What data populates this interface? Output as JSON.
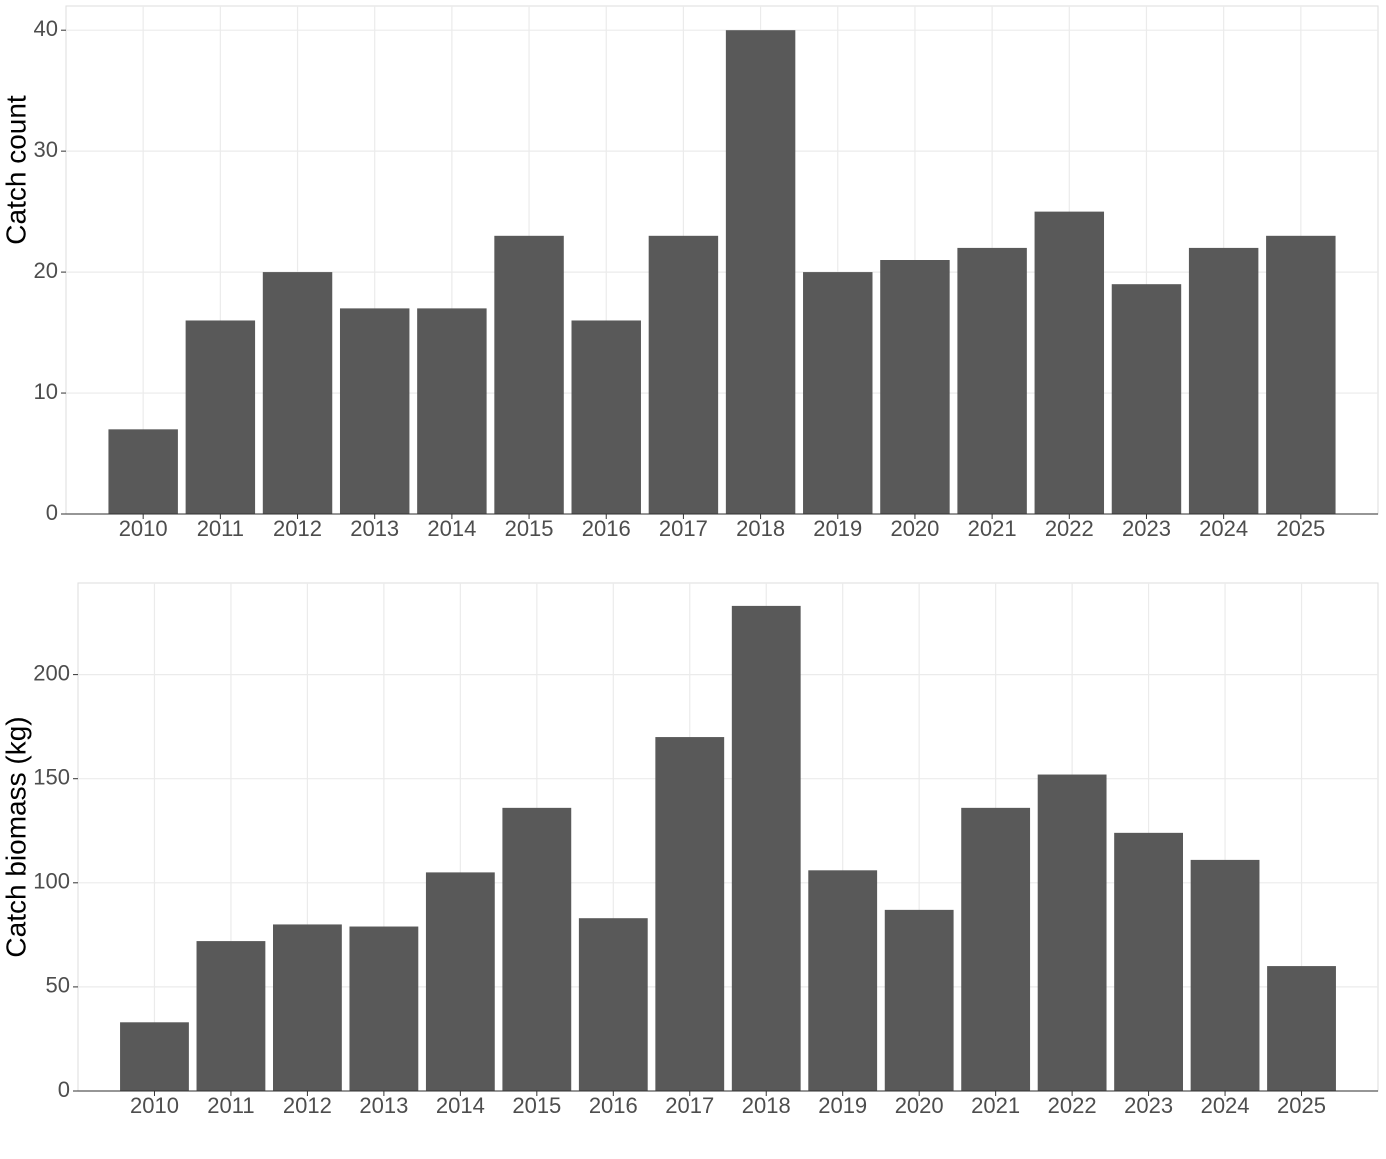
{
  "chart_data": [
    {
      "type": "bar",
      "ylabel": "Catch count",
      "categories": [
        "2010",
        "2011",
        "2012",
        "2013",
        "2014",
        "2015",
        "2016",
        "2017",
        "2018",
        "2019",
        "2020",
        "2021",
        "2022",
        "2023",
        "2024",
        "2025"
      ],
      "values": [
        7,
        16,
        20,
        17,
        17,
        23,
        16,
        23,
        40,
        20,
        21,
        22,
        25,
        19,
        22,
        23
      ],
      "color": "#595959",
      "ylim": [
        0,
        42
      ],
      "yticks": [
        0,
        10,
        20,
        30,
        40
      ],
      "grid": true
    },
    {
      "type": "bar",
      "ylabel": "Catch biomass (kg)",
      "categories": [
        "2010",
        "2011",
        "2012",
        "2013",
        "2014",
        "2015",
        "2016",
        "2017",
        "2018",
        "2019",
        "2020",
        "2021",
        "2022",
        "2023",
        "2024",
        "2025"
      ],
      "values": [
        33,
        72,
        80,
        79,
        105,
        136,
        83,
        170,
        233,
        106,
        87,
        136,
        152,
        124,
        111,
        60
      ],
      "color": "#595959",
      "ylim": [
        0,
        244
      ],
      "yticks": [
        0,
        50,
        100,
        150,
        200
      ],
      "grid": true
    }
  ]
}
